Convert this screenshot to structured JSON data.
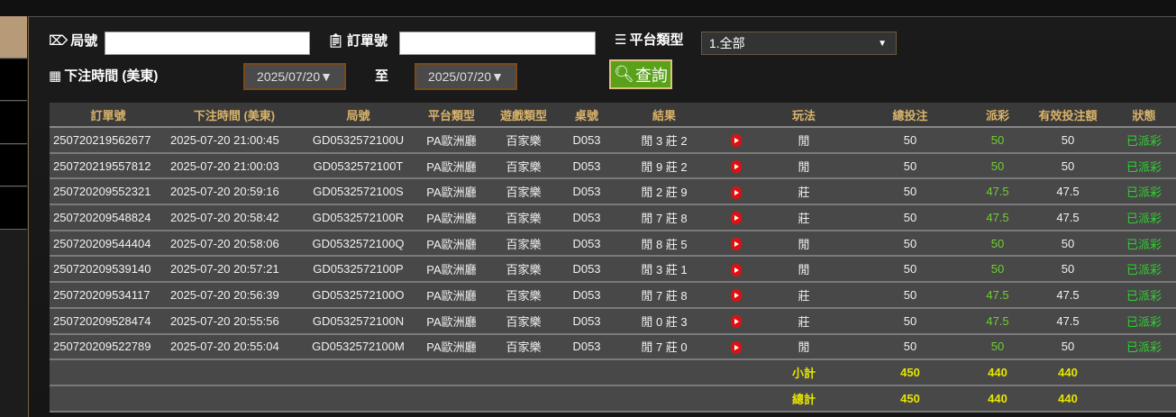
{
  "filters": {
    "round_label": "局號",
    "round_value": "",
    "order_label": "訂單號",
    "order_value": "",
    "platform_label": "平台類型",
    "platform_selected": "1.全部",
    "time_label": "下注時間 (美東)",
    "date_from": "2025/07/20▼",
    "to_label": "至",
    "date_to": "2025/07/20▼",
    "search_label": "查詢"
  },
  "table": {
    "headers": [
      "訂單號",
      "下注時間 (美東)",
      "局號",
      "平台類型",
      "遊戲類型",
      "桌號",
      "結果",
      "",
      "玩法",
      "總投注",
      "派彩",
      "有效投注額",
      "狀態"
    ],
    "rows": [
      [
        "250720219562677",
        "2025-07-20 21:00:45",
        "GD0532572100U",
        "PA歐洲廳",
        "百家樂",
        "D053",
        "閒 3 莊 2",
        "video",
        "閒",
        "50",
        "50",
        "50",
        "已派彩"
      ],
      [
        "250720219557812",
        "2025-07-20 21:00:03",
        "GD0532572100T",
        "PA歐洲廳",
        "百家樂",
        "D053",
        "閒 9 莊 2",
        "video",
        "閒",
        "50",
        "50",
        "50",
        "已派彩"
      ],
      [
        "250720209552321",
        "2025-07-20 20:59:16",
        "GD0532572100S",
        "PA歐洲廳",
        "百家樂",
        "D053",
        "閒 2 莊 9",
        "video",
        "莊",
        "50",
        "47.5",
        "47.5",
        "已派彩"
      ],
      [
        "250720209548824",
        "2025-07-20 20:58:42",
        "GD0532572100R",
        "PA歐洲廳",
        "百家樂",
        "D053",
        "閒 7 莊 8",
        "video",
        "莊",
        "50",
        "47.5",
        "47.5",
        "已派彩"
      ],
      [
        "250720209544404",
        "2025-07-20 20:58:06",
        "GD0532572100Q",
        "PA歐洲廳",
        "百家樂",
        "D053",
        "閒 8 莊 5",
        "video",
        "閒",
        "50",
        "50",
        "50",
        "已派彩"
      ],
      [
        "250720209539140",
        "2025-07-20 20:57:21",
        "GD0532572100P",
        "PA歐洲廳",
        "百家樂",
        "D053",
        "閒 3 莊 1",
        "video",
        "閒",
        "50",
        "50",
        "50",
        "已派彩"
      ],
      [
        "250720209534117",
        "2025-07-20 20:56:39",
        "GD0532572100O",
        "PA歐洲廳",
        "百家樂",
        "D053",
        "閒 7 莊 8",
        "video",
        "莊",
        "50",
        "47.5",
        "47.5",
        "已派彩"
      ],
      [
        "250720209528474",
        "2025-07-20 20:55:56",
        "GD0532572100N",
        "PA歐洲廳",
        "百家樂",
        "D053",
        "閒 0 莊 3",
        "video",
        "莊",
        "50",
        "47.5",
        "47.5",
        "已派彩"
      ],
      [
        "250720209522789",
        "2025-07-20 20:55:04",
        "GD0532572100M",
        "PA歐洲廳",
        "百家樂",
        "D053",
        "閒 7 莊 0",
        "video",
        "閒",
        "50",
        "50",
        "50",
        "已派彩"
      ]
    ],
    "subtotal": {
      "label": "小計",
      "bet": "450",
      "payout": "440",
      "valid": "440"
    },
    "total": {
      "label": "總計",
      "bet": "450",
      "payout": "440",
      "valid": "440"
    }
  },
  "colors": {
    "header_text": "#d9b36a",
    "payout": "#6fcf2f",
    "status": "#30d030",
    "totals": "#e6e600",
    "search_button": "#5aa11a"
  }
}
